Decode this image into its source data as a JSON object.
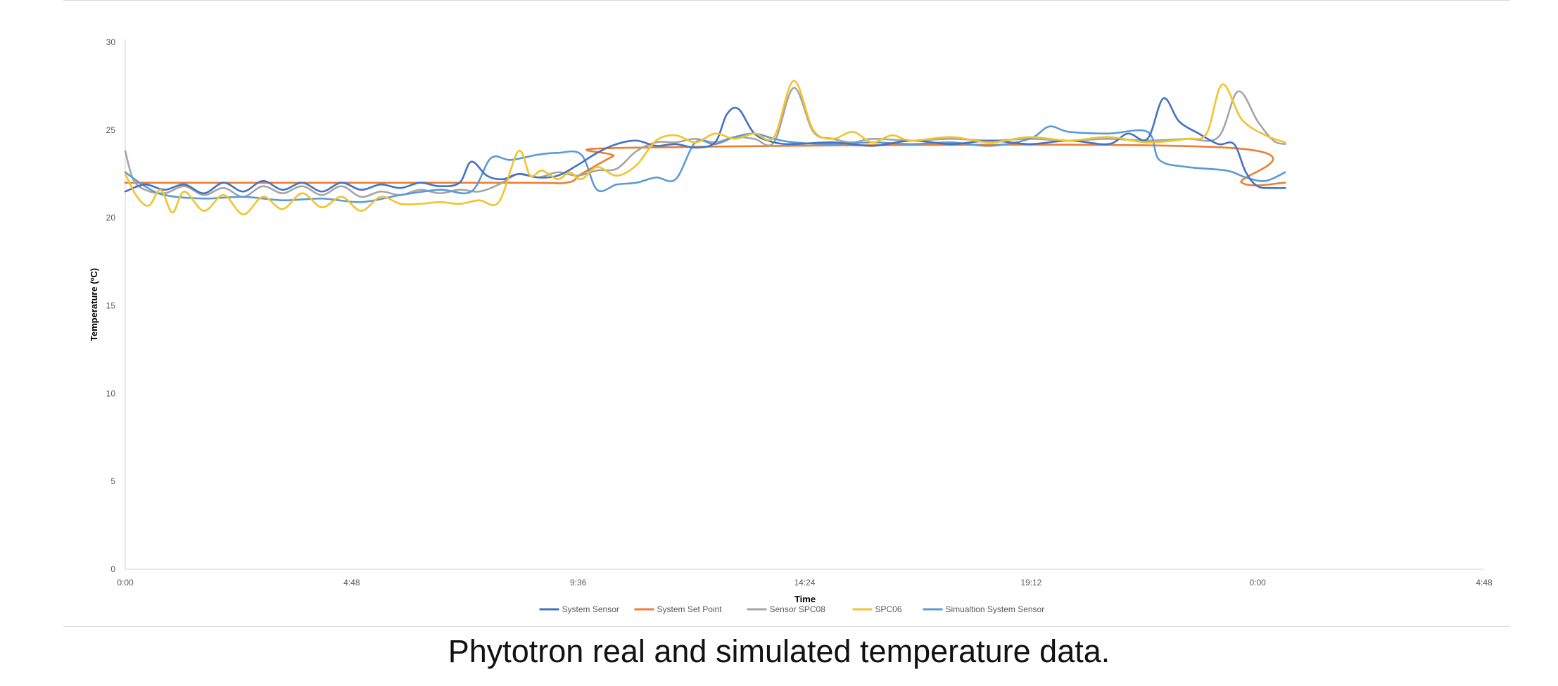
{
  "caption": "Phytotron real and simulated temperature data.",
  "chart_data": {
    "type": "line",
    "xlabel": "Time",
    "ylabel": "Temperature (ºC)",
    "x_ticks": [
      "0:00",
      "4:48",
      "9:36",
      "14:24",
      "19:12",
      "0:00",
      "4:48"
    ],
    "x_unit": "hours of day (0 = 0:00, 29 = 4:48 next day)",
    "xlim": [
      0,
      34.56
    ],
    "ylim": [
      0,
      30
    ],
    "y_ticks": [
      0,
      5,
      10,
      15,
      20,
      25,
      30
    ],
    "grid": false,
    "legend_position": "bottom",
    "series": [
      {
        "name": "System Sensor",
        "color": "#4472C4",
        "points": [
          [
            0,
            21.5
          ],
          [
            0.5,
            21.9
          ],
          [
            1,
            21.6
          ],
          [
            1.5,
            21.9
          ],
          [
            2,
            21.4
          ],
          [
            2.5,
            22.0
          ],
          [
            3,
            21.5
          ],
          [
            3.5,
            22.1
          ],
          [
            4,
            21.6
          ],
          [
            4.5,
            22.0
          ],
          [
            5,
            21.5
          ],
          [
            5.5,
            22.0
          ],
          [
            6,
            21.6
          ],
          [
            6.5,
            21.9
          ],
          [
            7,
            21.7
          ],
          [
            7.5,
            22.0
          ],
          [
            8,
            21.8
          ],
          [
            8.5,
            22.0
          ],
          [
            8.8,
            23.2
          ],
          [
            9.2,
            22.4
          ],
          [
            9.6,
            22.2
          ],
          [
            10,
            22.5
          ],
          [
            10.5,
            22.3
          ],
          [
            11,
            22.4
          ],
          [
            11.5,
            23.0
          ],
          [
            12,
            23.7
          ],
          [
            12.5,
            24.2
          ],
          [
            13,
            24.4
          ],
          [
            13.5,
            24.1
          ],
          [
            14,
            24.2
          ],
          [
            14.5,
            24.0
          ],
          [
            15,
            24.3
          ],
          [
            15.3,
            25.9
          ],
          [
            15.6,
            26.2
          ],
          [
            16,
            24.8
          ],
          [
            16.5,
            24.3
          ],
          [
            17,
            24.2
          ],
          [
            18,
            24.3
          ],
          [
            19,
            24.1
          ],
          [
            20,
            24.4
          ],
          [
            21,
            24.2
          ],
          [
            22,
            24.4
          ],
          [
            23,
            24.2
          ],
          [
            24,
            24.4
          ],
          [
            25,
            24.2
          ],
          [
            25.5,
            24.8
          ],
          [
            26,
            24.5
          ],
          [
            26.4,
            26.8
          ],
          [
            26.8,
            25.5
          ],
          [
            27.3,
            24.8
          ],
          [
            27.8,
            24.2
          ],
          [
            28.2,
            24.2
          ],
          [
            28.5,
            22.6
          ],
          [
            28.8,
            21.8
          ],
          [
            29.2,
            21.7
          ],
          [
            29.5,
            21.7
          ]
        ]
      },
      {
        "name": "System Set Point",
        "color": "#ED7D31",
        "points": [
          [
            0,
            22
          ],
          [
            9.7,
            22
          ],
          [
            11.2,
            22
          ],
          [
            11.6,
            22.5
          ],
          [
            12.4,
            23.5
          ],
          [
            13,
            24
          ],
          [
            28,
            24
          ],
          [
            28.4,
            22
          ],
          [
            29.5,
            22
          ]
        ]
      },
      {
        "name": "Sensor SPC08",
        "color": "#A5A5A5",
        "points": [
          [
            0,
            23.8
          ],
          [
            0.2,
            22.2
          ],
          [
            0.5,
            21.6
          ],
          [
            1,
            21.4
          ],
          [
            1.5,
            21.8
          ],
          [
            2,
            21.3
          ],
          [
            2.5,
            21.7
          ],
          [
            3,
            21.2
          ],
          [
            3.5,
            21.8
          ],
          [
            4,
            21.4
          ],
          [
            4.5,
            21.8
          ],
          [
            5,
            21.3
          ],
          [
            5.5,
            21.8
          ],
          [
            6,
            21.2
          ],
          [
            6.5,
            21.5
          ],
          [
            7,
            21.3
          ],
          [
            7.5,
            21.6
          ],
          [
            8,
            21.4
          ],
          [
            8.5,
            21.6
          ],
          [
            9,
            21.5
          ],
          [
            9.5,
            21.9
          ],
          [
            10,
            22.5
          ],
          [
            10.5,
            22.3
          ],
          [
            11,
            22.6
          ],
          [
            11.5,
            22.4
          ],
          [
            12,
            22.7
          ],
          [
            12.5,
            22.8
          ],
          [
            13,
            23.8
          ],
          [
            13.5,
            24.3
          ],
          [
            14,
            24.3
          ],
          [
            14.5,
            24.5
          ],
          [
            15,
            24.3
          ],
          [
            15.5,
            24.6
          ],
          [
            16,
            24.5
          ],
          [
            16.5,
            24.3
          ],
          [
            17,
            27.4
          ],
          [
            17.5,
            24.9
          ],
          [
            18,
            24.5
          ],
          [
            18.5,
            24.3
          ],
          [
            19,
            24.5
          ],
          [
            20,
            24.4
          ],
          [
            21,
            24.5
          ],
          [
            22,
            24.4
          ],
          [
            23,
            24.5
          ],
          [
            24,
            24.4
          ],
          [
            25,
            24.5
          ],
          [
            26,
            24.4
          ],
          [
            27,
            24.5
          ],
          [
            27.8,
            24.6
          ],
          [
            28.3,
            27.2
          ],
          [
            28.8,
            25.5
          ],
          [
            29.2,
            24.4
          ],
          [
            29.5,
            24.2
          ]
        ]
      },
      {
        "name": "SPC06",
        "color": "#F2C32B",
        "points": [
          [
            0,
            22.5
          ],
          [
            0.3,
            21.2
          ],
          [
            0.6,
            20.7
          ],
          [
            0.9,
            21.6
          ],
          [
            1.2,
            20.3
          ],
          [
            1.5,
            21.5
          ],
          [
            2,
            20.4
          ],
          [
            2.5,
            21.3
          ],
          [
            3,
            20.2
          ],
          [
            3.5,
            21.2
          ],
          [
            4,
            20.5
          ],
          [
            4.5,
            21.4
          ],
          [
            5,
            20.6
          ],
          [
            5.5,
            21.2
          ],
          [
            6,
            20.4
          ],
          [
            6.5,
            21.2
          ],
          [
            7,
            20.8
          ],
          [
            7.5,
            20.8
          ],
          [
            8,
            20.9
          ],
          [
            8.5,
            20.8
          ],
          [
            9,
            21.0
          ],
          [
            9.5,
            20.9
          ],
          [
            10,
            23.8
          ],
          [
            10.3,
            22.4
          ],
          [
            10.6,
            22.7
          ],
          [
            11,
            22.2
          ],
          [
            11.3,
            22.6
          ],
          [
            11.6,
            22.2
          ],
          [
            12,
            22.9
          ],
          [
            12.5,
            22.4
          ],
          [
            13,
            23.0
          ],
          [
            13.5,
            24.4
          ],
          [
            14,
            24.7
          ],
          [
            14.5,
            24.3
          ],
          [
            15,
            24.8
          ],
          [
            15.5,
            24.5
          ],
          [
            16,
            24.8
          ],
          [
            16.5,
            24.6
          ],
          [
            17,
            27.8
          ],
          [
            17.5,
            25.0
          ],
          [
            18,
            24.5
          ],
          [
            18.5,
            24.9
          ],
          [
            19,
            24.3
          ],
          [
            19.5,
            24.7
          ],
          [
            20,
            24.4
          ],
          [
            21,
            24.6
          ],
          [
            22,
            24.3
          ],
          [
            23,
            24.6
          ],
          [
            24,
            24.4
          ],
          [
            25,
            24.6
          ],
          [
            26,
            24.3
          ],
          [
            27,
            24.5
          ],
          [
            27.5,
            24.8
          ],
          [
            27.9,
            27.6
          ],
          [
            28.4,
            25.6
          ],
          [
            29,
            24.7
          ],
          [
            29.5,
            24.3
          ]
        ]
      },
      {
        "name": "Simualtion System Sensor",
        "color": "#5B9BD5",
        "points": [
          [
            0,
            22.6
          ],
          [
            0.5,
            21.8
          ],
          [
            1,
            21.3
          ],
          [
            2,
            21.1
          ],
          [
            3,
            21.2
          ],
          [
            4,
            21.0
          ],
          [
            5,
            21.1
          ],
          [
            6,
            20.9
          ],
          [
            7,
            21.3
          ],
          [
            8,
            21.6
          ],
          [
            8.8,
            21.5
          ],
          [
            9.3,
            23.4
          ],
          [
            9.8,
            23.3
          ],
          [
            10.5,
            23.6
          ],
          [
            11,
            23.7
          ],
          [
            11.6,
            23.6
          ],
          [
            12,
            21.6
          ],
          [
            12.5,
            21.9
          ],
          [
            13,
            22.0
          ],
          [
            13.5,
            22.3
          ],
          [
            14,
            22.2
          ],
          [
            14.5,
            24.3
          ],
          [
            15,
            24.2
          ],
          [
            15.5,
            24.6
          ],
          [
            16,
            24.8
          ],
          [
            16.5,
            24.5
          ],
          [
            17,
            24.3
          ],
          [
            18,
            24.2
          ],
          [
            19,
            24.3
          ],
          [
            20,
            24.2
          ],
          [
            21,
            24.3
          ],
          [
            22,
            24.1
          ],
          [
            23,
            24.5
          ],
          [
            23.5,
            25.2
          ],
          [
            24,
            24.9
          ],
          [
            25,
            24.8
          ],
          [
            26,
            24.9
          ],
          [
            26.3,
            23.3
          ],
          [
            27,
            22.9
          ],
          [
            28,
            22.7
          ],
          [
            28.5,
            22.3
          ],
          [
            29,
            22.1
          ],
          [
            29.5,
            22.6
          ]
        ]
      }
    ]
  }
}
